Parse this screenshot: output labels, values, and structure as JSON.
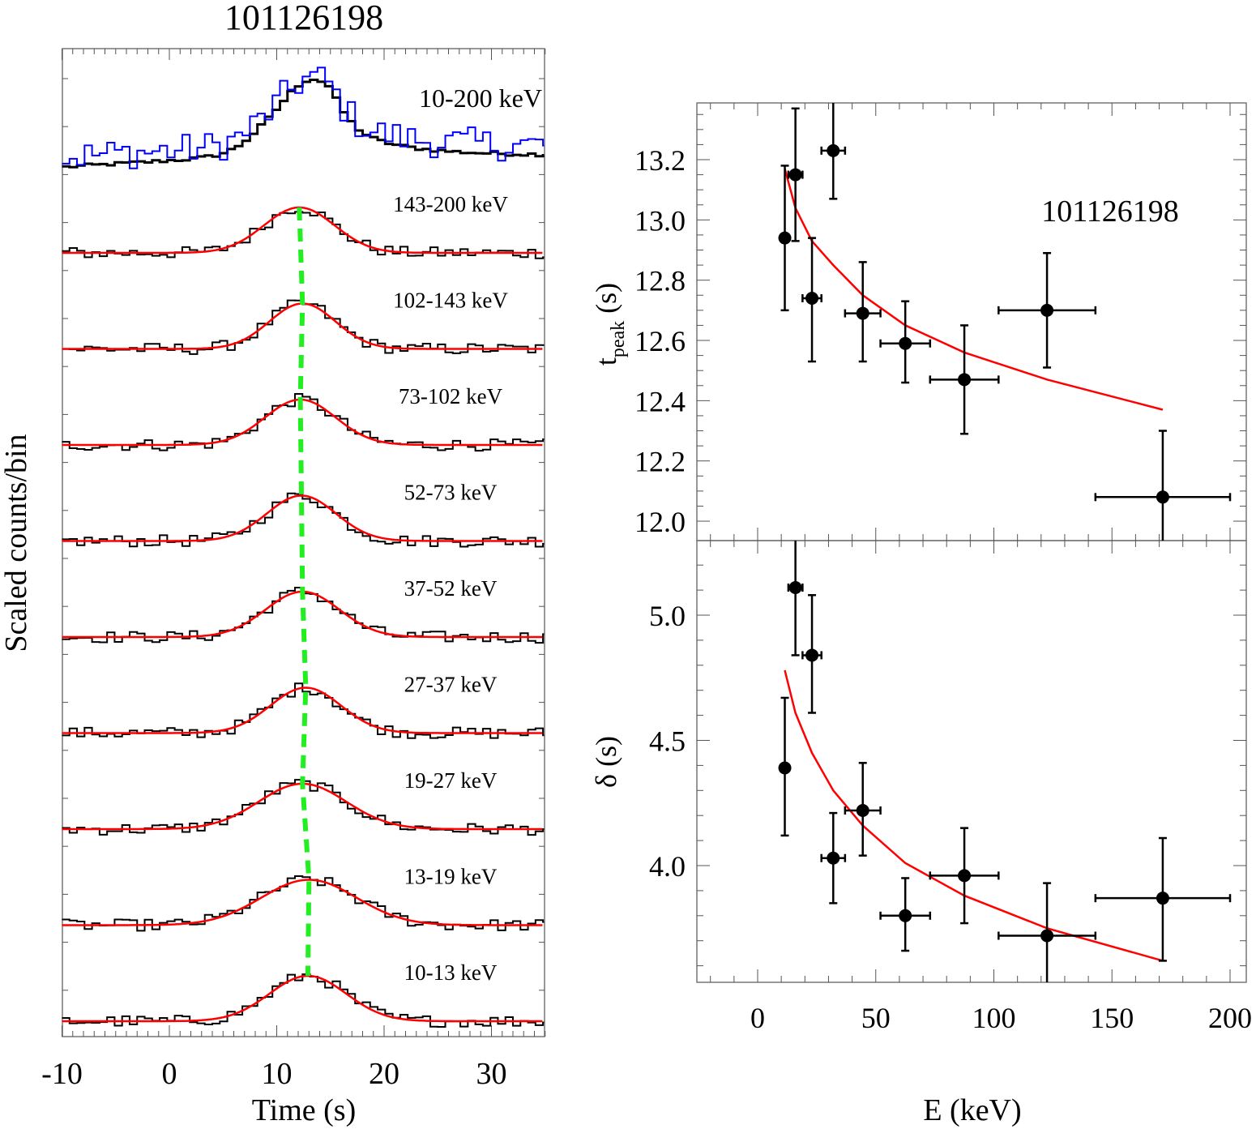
{
  "chart_data": [
    {
      "type": "line",
      "panel": "left",
      "title": "101126198",
      "xlabel": "Time (s)",
      "ylabel": "Scaled counts/bin",
      "xlim": [
        -10,
        35
      ],
      "xticks": [
        -10,
        0,
        10,
        20,
        30
      ],
      "xtick_labels": [
        "-10",
        "0",
        "10",
        "20",
        "30"
      ],
      "grid": false,
      "colors": {
        "histogram": "#000000",
        "comparison": "#0000ff",
        "fit": "#ff0000",
        "peak_track": "#22ee22"
      },
      "total_band": {
        "label": "10-200 keV",
        "black_curve_desc": "smooth total light curve rising from ~0.1 baseline to peak ~1.0 near t=13 s, decaying to ~0.2",
        "blue_curve_desc": "noisier high-energy light curve overlaid"
      },
      "bands": [
        {
          "label": "143-200 keV",
          "t_peak": 12.1,
          "width": 4.6,
          "baseline": 0.05,
          "amp": 0.7
        },
        {
          "label": "102-143 keV",
          "t_peak": 12.4,
          "width": 4.3,
          "baseline": 0.05,
          "amp": 0.7
        },
        {
          "label": "73-102 keV",
          "t_peak": 12.2,
          "width": 4.6,
          "baseline": 0.05,
          "amp": 0.7
        },
        {
          "label": "52-73 keV",
          "t_peak": 12.3,
          "width": 4.5,
          "baseline": 0.05,
          "amp": 0.7
        },
        {
          "label": "37-52 keV",
          "t_peak": 12.4,
          "width": 4.8,
          "baseline": 0.05,
          "amp": 0.7
        },
        {
          "label": "27-37 keV",
          "t_peak": 12.7,
          "width": 4.6,
          "baseline": 0.05,
          "amp": 0.7
        },
        {
          "label": "19-27 keV",
          "t_peak": 12.4,
          "width": 5.7,
          "baseline": 0.05,
          "amp": 0.7
        },
        {
          "label": "13-19 keV",
          "t_peak": 13.0,
          "width": 6.2,
          "baseline": 0.05,
          "amp": 0.7
        },
        {
          "label": "10-13 keV",
          "t_peak": 12.9,
          "width": 5.0,
          "baseline": 0.05,
          "amp": 0.7
        }
      ],
      "peak_track_times": [
        12.1,
        12.3,
        12.4,
        12.5,
        12.6,
        12.7,
        12.8,
        12.9,
        13.0,
        13.1
      ]
    },
    {
      "type": "scatter",
      "panel": "right-top",
      "annotation": "101126198",
      "xlabel": "E (keV)",
      "ylabel": "t_peak (s)",
      "ylabel_main": "t",
      "ylabel_sub": "peak",
      "ylabel_unit": " (s)",
      "xlim": [
        -20,
        210
      ],
      "ylim": [
        11.93,
        13.37
      ],
      "yticks": [
        12.0,
        12.2,
        12.4,
        12.6,
        12.8,
        13.0,
        13.2
      ],
      "ytick_labels": [
        "12.0",
        "12.2",
        "12.4",
        "12.6",
        "12.8",
        "13.0",
        "13.2"
      ],
      "points": [
        {
          "E": 11.5,
          "Elo": 10,
          "Ehi": 13,
          "y": 12.94,
          "ylo": 12.7,
          "yhi": 13.18
        },
        {
          "E": 16.0,
          "Elo": 13,
          "Ehi": 19,
          "y": 13.15,
          "ylo": 12.93,
          "yhi": 13.37
        },
        {
          "E": 23.0,
          "Elo": 19,
          "Ehi": 27,
          "y": 12.74,
          "ylo": 12.53,
          "yhi": 12.94
        },
        {
          "E": 32.0,
          "Elo": 27,
          "Ehi": 37,
          "y": 13.23,
          "ylo": 13.07,
          "yhi": 13.4
        },
        {
          "E": 44.5,
          "Elo": 37,
          "Ehi": 52,
          "y": 12.69,
          "ylo": 12.53,
          "yhi": 12.86
        },
        {
          "E": 62.5,
          "Elo": 52,
          "Ehi": 73,
          "y": 12.59,
          "ylo": 12.46,
          "yhi": 12.73
        },
        {
          "E": 87.5,
          "Elo": 73,
          "Ehi": 102,
          "y": 12.47,
          "ylo": 12.29,
          "yhi": 12.65
        },
        {
          "E": 122.5,
          "Elo": 102,
          "Ehi": 143,
          "y": 12.7,
          "ylo": 12.51,
          "yhi": 12.89
        },
        {
          "E": 171.5,
          "Elo": 143,
          "Ehi": 200,
          "y": 12.08,
          "ylo": 11.86,
          "yhi": 12.3
        }
      ],
      "fit": {
        "x": [
          11.5,
          16,
          23,
          32,
          44.5,
          62.5,
          87.5,
          122.5,
          171.5
        ],
        "y": [
          13.17,
          13.04,
          12.93,
          12.85,
          12.75,
          12.65,
          12.56,
          12.47,
          12.37
        ]
      }
    },
    {
      "type": "scatter",
      "panel": "right-bottom",
      "xlabel": "E (keV)",
      "ylabel": "δ (s)",
      "xlim": [
        -20,
        210
      ],
      "ylim": [
        3.53,
        5.28
      ],
      "xticks": [
        0,
        50,
        100,
        150,
        200
      ],
      "xtick_labels": [
        "0",
        "50",
        "100",
        "150",
        "200"
      ],
      "yticks": [
        4.0,
        4.5,
        5.0
      ],
      "ytick_labels": [
        "4.0",
        "4.5",
        "5.0"
      ],
      "points": [
        {
          "E": 11.5,
          "Elo": 10,
          "Ehi": 13,
          "y": 4.39,
          "ylo": 4.12,
          "yhi": 4.67
        },
        {
          "E": 16.0,
          "Elo": 13,
          "Ehi": 19,
          "y": 5.11,
          "ylo": 4.84,
          "yhi": 5.38
        },
        {
          "E": 23.0,
          "Elo": 19,
          "Ehi": 27,
          "y": 4.84,
          "ylo": 4.61,
          "yhi": 5.08
        },
        {
          "E": 32.0,
          "Elo": 27,
          "Ehi": 37,
          "y": 4.03,
          "ylo": 3.85,
          "yhi": 4.21
        },
        {
          "E": 44.5,
          "Elo": 37,
          "Ehi": 52,
          "y": 4.22,
          "ylo": 4.04,
          "yhi": 4.41
        },
        {
          "E": 62.5,
          "Elo": 52,
          "Ehi": 73,
          "y": 3.8,
          "ylo": 3.66,
          "yhi": 3.95
        },
        {
          "E": 87.5,
          "Elo": 73,
          "Ehi": 102,
          "y": 3.96,
          "ylo": 3.77,
          "yhi": 4.15
        },
        {
          "E": 122.5,
          "Elo": 102,
          "Ehi": 143,
          "y": 3.72,
          "ylo": 3.51,
          "yhi": 3.93
        },
        {
          "E": 171.5,
          "Elo": 143,
          "Ehi": 200,
          "y": 3.87,
          "ylo": 3.62,
          "yhi": 4.11
        }
      ],
      "fit": {
        "x": [
          11.5,
          16,
          23,
          32,
          44.5,
          62.5,
          87.5,
          122.5,
          171.5
        ],
        "y": [
          4.78,
          4.61,
          4.45,
          4.3,
          4.16,
          4.01,
          3.88,
          3.75,
          3.62
        ]
      }
    }
  ]
}
